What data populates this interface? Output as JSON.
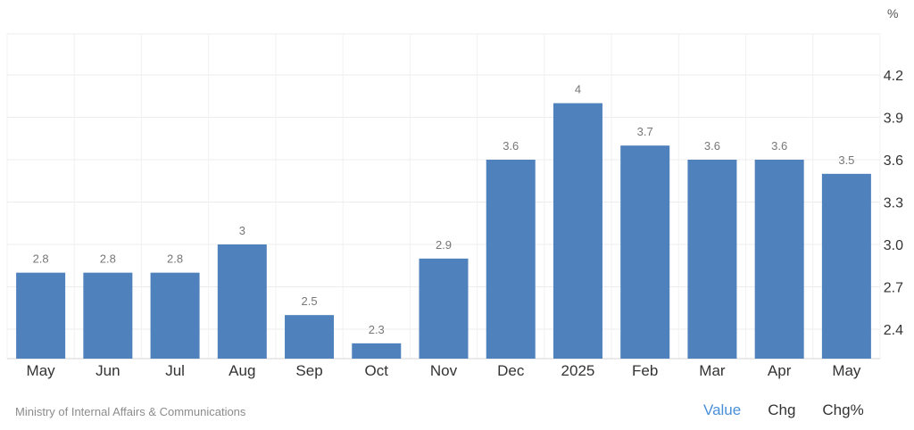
{
  "unit_label": "%",
  "source": "Ministry of Internal Affairs & Communications",
  "tabs": [
    {
      "label": "Value",
      "active": true
    },
    {
      "label": "Chg",
      "active": false
    },
    {
      "label": "Chg%",
      "active": false
    }
  ],
  "colors": {
    "bar": "#4f81bd",
    "active_tab": "#4a90d9"
  },
  "chart_data": {
    "type": "bar",
    "categories": [
      "May",
      "Jun",
      "Jul",
      "Aug",
      "Sep",
      "Oct",
      "Nov",
      "Dec",
      "2025",
      "Feb",
      "Mar",
      "Apr",
      "May"
    ],
    "values": [
      2.8,
      2.8,
      2.8,
      3,
      2.5,
      2.3,
      2.9,
      3.6,
      4,
      3.7,
      3.6,
      3.6,
      3.5
    ],
    "value_labels": [
      "2.8",
      "2.8",
      "2.8",
      "3",
      "2.5",
      "2.3",
      "2.9",
      "3.6",
      "4",
      "3.7",
      "3.6",
      "3.6",
      "3.5"
    ],
    "y_ticks": [
      "2.4",
      "2.7",
      "3.0",
      "3.3",
      "3.6",
      "3.9",
      "4.2"
    ],
    "y_axis_position": "right",
    "ylim": [
      2.2,
      4.4
    ],
    "grid": true
  }
}
